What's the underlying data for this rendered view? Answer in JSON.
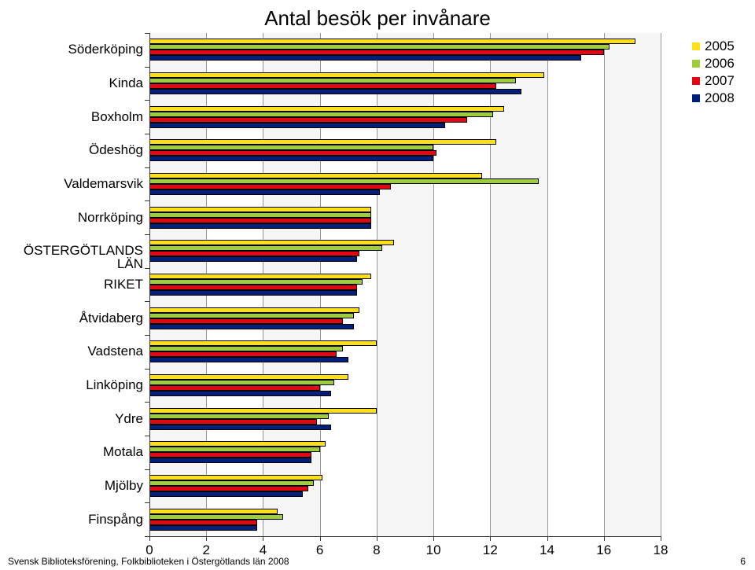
{
  "chart": {
    "type": "bar",
    "title": "Antal besök per invånare",
    "title_fontsize": 26,
    "background_color": "#ffffff",
    "plot_bg_alt_color": "#f5f5f5",
    "grid_color": "#959595",
    "x": {
      "min": 0,
      "max": 18,
      "ticks": [
        0,
        2,
        4,
        6,
        8,
        10,
        12,
        14,
        16,
        18
      ],
      "tick_fontsize": 17
    },
    "series": [
      {
        "name": "2005",
        "color": "#ffdf1a"
      },
      {
        "name": "2006",
        "color": "#9dcc3c"
      },
      {
        "name": "2007",
        "color": "#e30613"
      },
      {
        "name": "2008",
        "color": "#001f7a"
      }
    ],
    "categories": [
      {
        "label": "Söderköping",
        "values": [
          17.1,
          16.2,
          16.0,
          15.2
        ]
      },
      {
        "label": "Kinda",
        "values": [
          13.9,
          12.9,
          12.2,
          13.1
        ]
      },
      {
        "label": "Boxholm",
        "values": [
          12.5,
          12.1,
          11.2,
          10.4
        ]
      },
      {
        "label": "Ödeshög",
        "values": [
          12.2,
          10.0,
          10.1,
          10.0
        ]
      },
      {
        "label": "Valdemarsvik",
        "values": [
          11.7,
          13.7,
          8.5,
          8.1
        ]
      },
      {
        "label": "Norrköping",
        "values": [
          7.8,
          7.8,
          7.8,
          7.8
        ]
      },
      {
        "label": "ÖSTERGÖTLANDS LÄN",
        "values": [
          8.6,
          8.2,
          7.4,
          7.3
        ]
      },
      {
        "label": "RIKET",
        "values": [
          7.8,
          7.5,
          7.3,
          7.3
        ]
      },
      {
        "label": "Åtvidaberg",
        "values": [
          7.4,
          7.2,
          6.8,
          7.2
        ]
      },
      {
        "label": "Vadstena",
        "values": [
          8.0,
          6.8,
          6.6,
          7.0
        ]
      },
      {
        "label": "Linköping",
        "values": [
          7.0,
          6.5,
          6.0,
          6.4
        ]
      },
      {
        "label": "Ydre",
        "values": [
          8.0,
          6.3,
          5.9,
          6.4
        ]
      },
      {
        "label": "Motala",
        "values": [
          6.2,
          6.0,
          5.7,
          5.7
        ]
      },
      {
        "label": "Mjölby",
        "values": [
          6.1,
          5.8,
          5.6,
          5.4
        ]
      },
      {
        "label": "Finspång",
        "values": [
          4.5,
          4.7,
          3.8,
          3.8
        ]
      }
    ],
    "label_fontsize": 17
  },
  "footer": "Svensk Biblioteksförening, Folkbiblioteken i Östergötlands län 2008",
  "page": "6"
}
